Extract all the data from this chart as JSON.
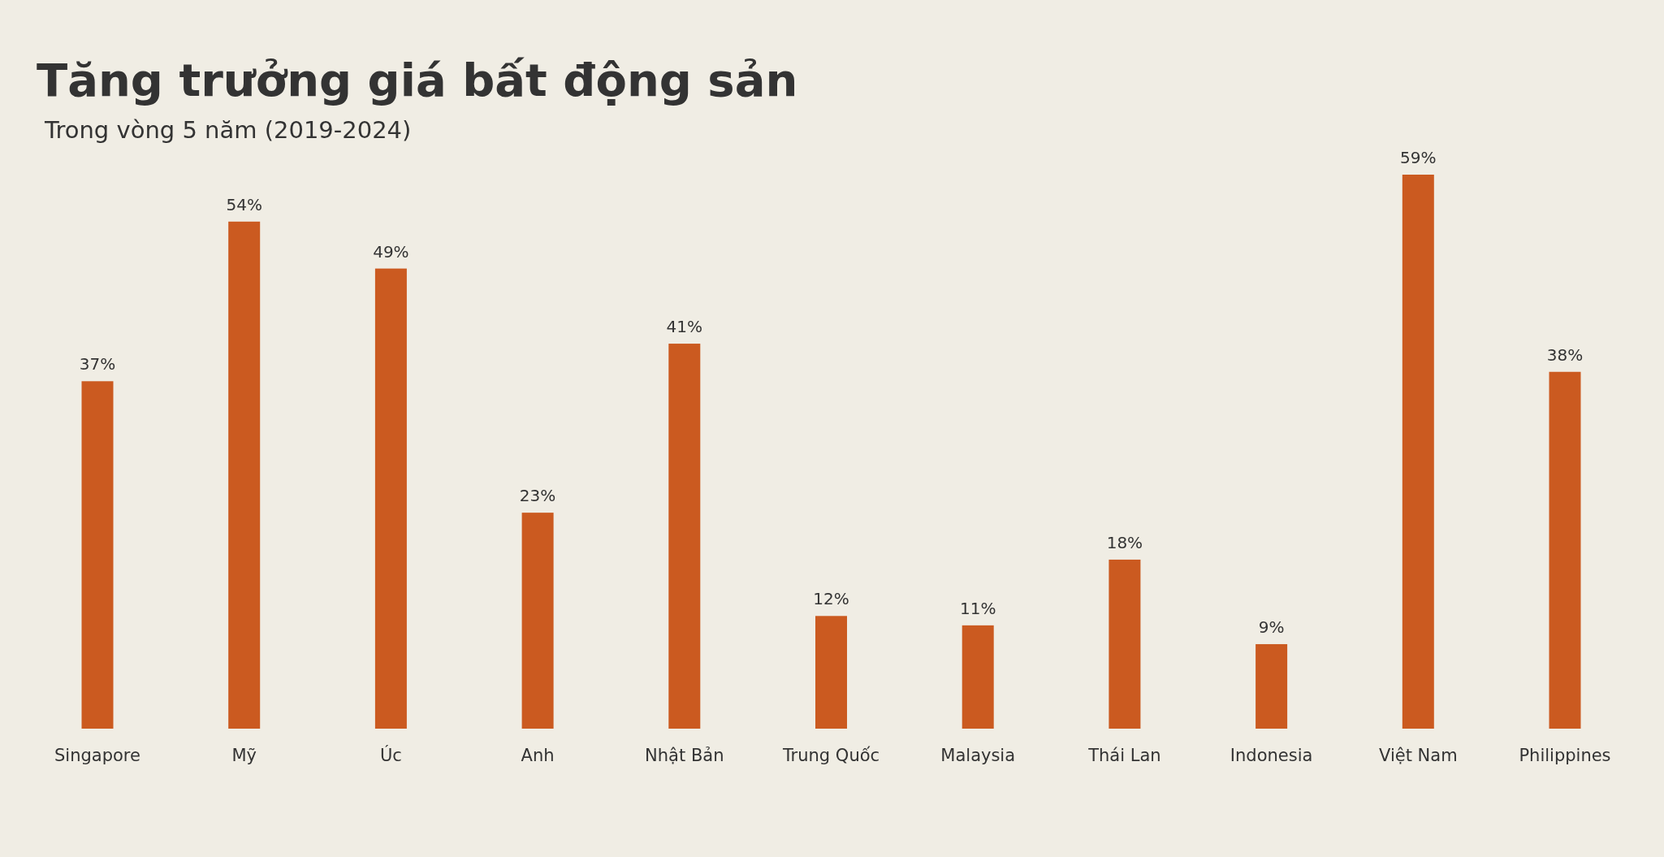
{
  "chart_data": {
    "type": "bar",
    "title": "Tăng trưởng giá bất động sản",
    "subtitle": "Trong vòng 5 năm (2019-2024)",
    "categories": [
      "Singapore",
      "Mỹ",
      "Úc",
      "Anh",
      "Nhật Bản",
      "Trung Quốc",
      "Malaysia",
      "Thái Lan",
      "Indonesia",
      "Việt Nam",
      "Philippines"
    ],
    "values": [
      37,
      54,
      49,
      23,
      41,
      12,
      11,
      18,
      9,
      59,
      38
    ],
    "value_labels": [
      "37%",
      "54%",
      "49%",
      "23%",
      "41%",
      "12%",
      "11%",
      "18%",
      "9%",
      "59%",
      "38%"
    ],
    "color": "#cb5a20"
  }
}
